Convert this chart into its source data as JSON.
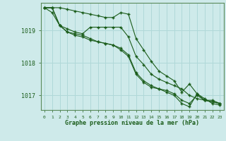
{
  "xlabel": "Graphe pression niveau de la mer (hPa)",
  "background_color": "#ceeaea",
  "grid_color": "#b0d8d8",
  "line_color": "#1a5c1a",
  "xlim": [
    -0.5,
    23.5
  ],
  "ylim": [
    1016.55,
    1019.85
  ],
  "yticks": [
    1017,
    1018,
    1019
  ],
  "xticks": [
    0,
    1,
    2,
    3,
    4,
    5,
    6,
    7,
    8,
    9,
    10,
    11,
    12,
    13,
    14,
    15,
    16,
    17,
    18,
    19,
    20,
    21,
    22,
    23
  ],
  "line1": [
    1019.7,
    1019.7,
    1019.7,
    1019.65,
    1019.6,
    1019.55,
    1019.5,
    1019.45,
    1019.4,
    1019.4,
    1019.55,
    1019.5,
    1018.75,
    1018.4,
    1018.05,
    1017.75,
    1017.6,
    1017.45,
    1017.1,
    1017.35,
    1017.05,
    1016.85,
    1016.85,
    1016.75
  ],
  "line2": [
    1019.7,
    1019.55,
    1019.15,
    1019.05,
    1018.95,
    1018.9,
    1019.1,
    1019.1,
    1019.1,
    1019.1,
    1019.1,
    1018.8,
    1018.2,
    1017.95,
    1017.65,
    1017.5,
    1017.4,
    1017.3,
    1017.2,
    1017.0,
    1016.9,
    1016.85,
    1016.8,
    1016.75
  ],
  "line3": [
    1019.7,
    1019.7,
    1019.15,
    1018.95,
    1018.9,
    1018.85,
    1018.75,
    1018.65,
    1018.6,
    1018.55,
    1018.45,
    1018.25,
    1017.7,
    1017.45,
    1017.3,
    1017.2,
    1017.15,
    1017.05,
    1016.85,
    1016.75,
    1017.0,
    1016.85,
    1016.8,
    1016.75
  ],
  "line4": [
    1019.7,
    1019.7,
    1019.15,
    1018.95,
    1018.85,
    1018.8,
    1018.7,
    1018.65,
    1018.6,
    1018.55,
    1018.4,
    1018.2,
    1017.65,
    1017.4,
    1017.25,
    1017.2,
    1017.1,
    1017.0,
    1016.75,
    1016.65,
    1017.05,
    1016.9,
    1016.75,
    1016.7
  ]
}
